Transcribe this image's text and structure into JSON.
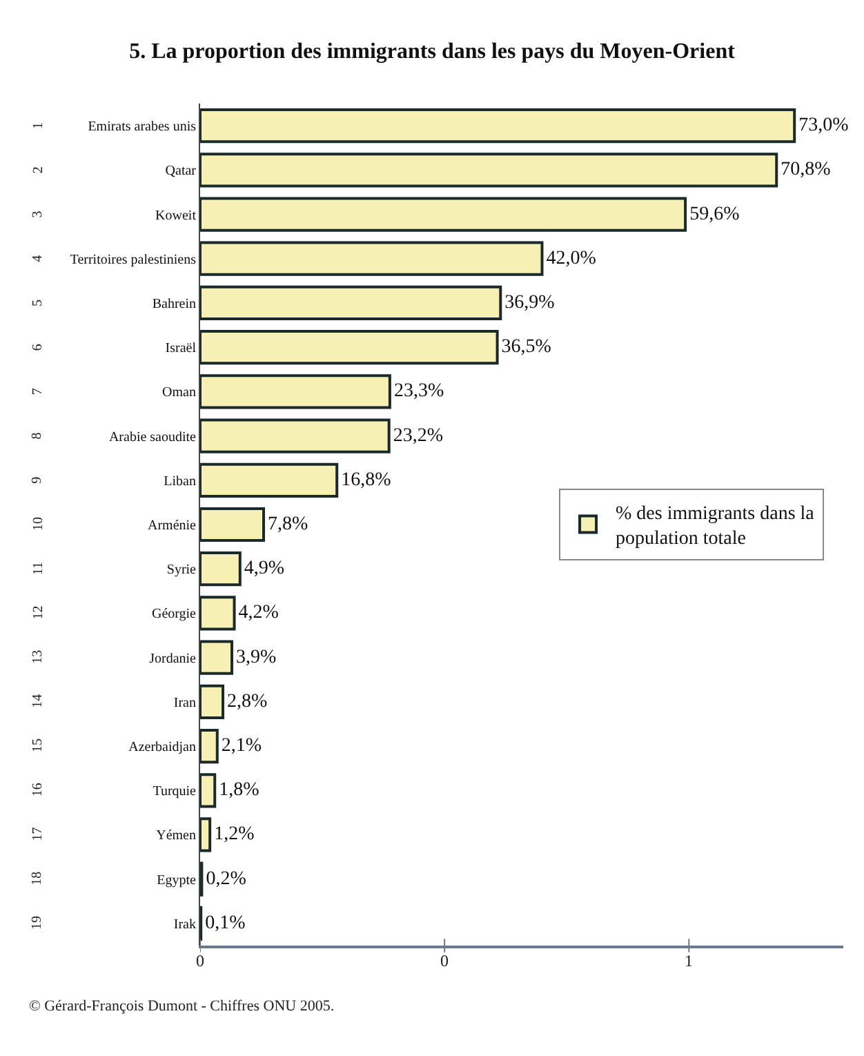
{
  "chart_data": {
    "type": "bar",
    "orientation": "horizontal",
    "title": "5. La proportion des immigrants dans les pays du Moyen-Orient",
    "categories": [
      "Emirats arabes unis",
      "Qatar",
      "Koweit",
      "Territoires palestiniens",
      "Bahrein",
      "Israël",
      "Oman",
      "Arabie saoudite",
      "Liban",
      "Arménie",
      "Syrie",
      "Géorgie",
      "Jordanie",
      "Iran",
      "Azerbaidjan",
      "Turquie",
      "Yémen",
      "Egypte",
      "Irak"
    ],
    "series": [
      {
        "name": "% des immigrants dans la population totale",
        "color": "#f7f0b4",
        "values": [
          73.0,
          70.8,
          59.6,
          42.0,
          36.9,
          36.5,
          23.3,
          23.2,
          16.8,
          7.8,
          4.9,
          4.2,
          3.9,
          2.8,
          2.1,
          1.8,
          1.2,
          0.2,
          0.1
        ],
        "value_labels": [
          "73,0%",
          "70,8%",
          "59,6%",
          "42,0%",
          "36,9%",
          "36,5%",
          "23,3%",
          "23,2%",
          "16,8%",
          "7,8%",
          "4,9%",
          "4,2%",
          "3,9%",
          "2,8%",
          "2,1%",
          "1,8%",
          "1,2%",
          "0,2%",
          "0,1%"
        ]
      }
    ],
    "xlim": [
      0,
      79
    ],
    "legend": "right",
    "annotations": [
      "1",
      "2",
      "3",
      "4",
      "5",
      "6",
      "7",
      "8",
      "9",
      "10",
      "11",
      "12",
      "13",
      "14",
      "15",
      "16",
      "17",
      "18",
      "19",
      "0",
      "0",
      "1",
      "© Gérard-François Dumont - Chiffres ONU 2005."
    ]
  }
}
